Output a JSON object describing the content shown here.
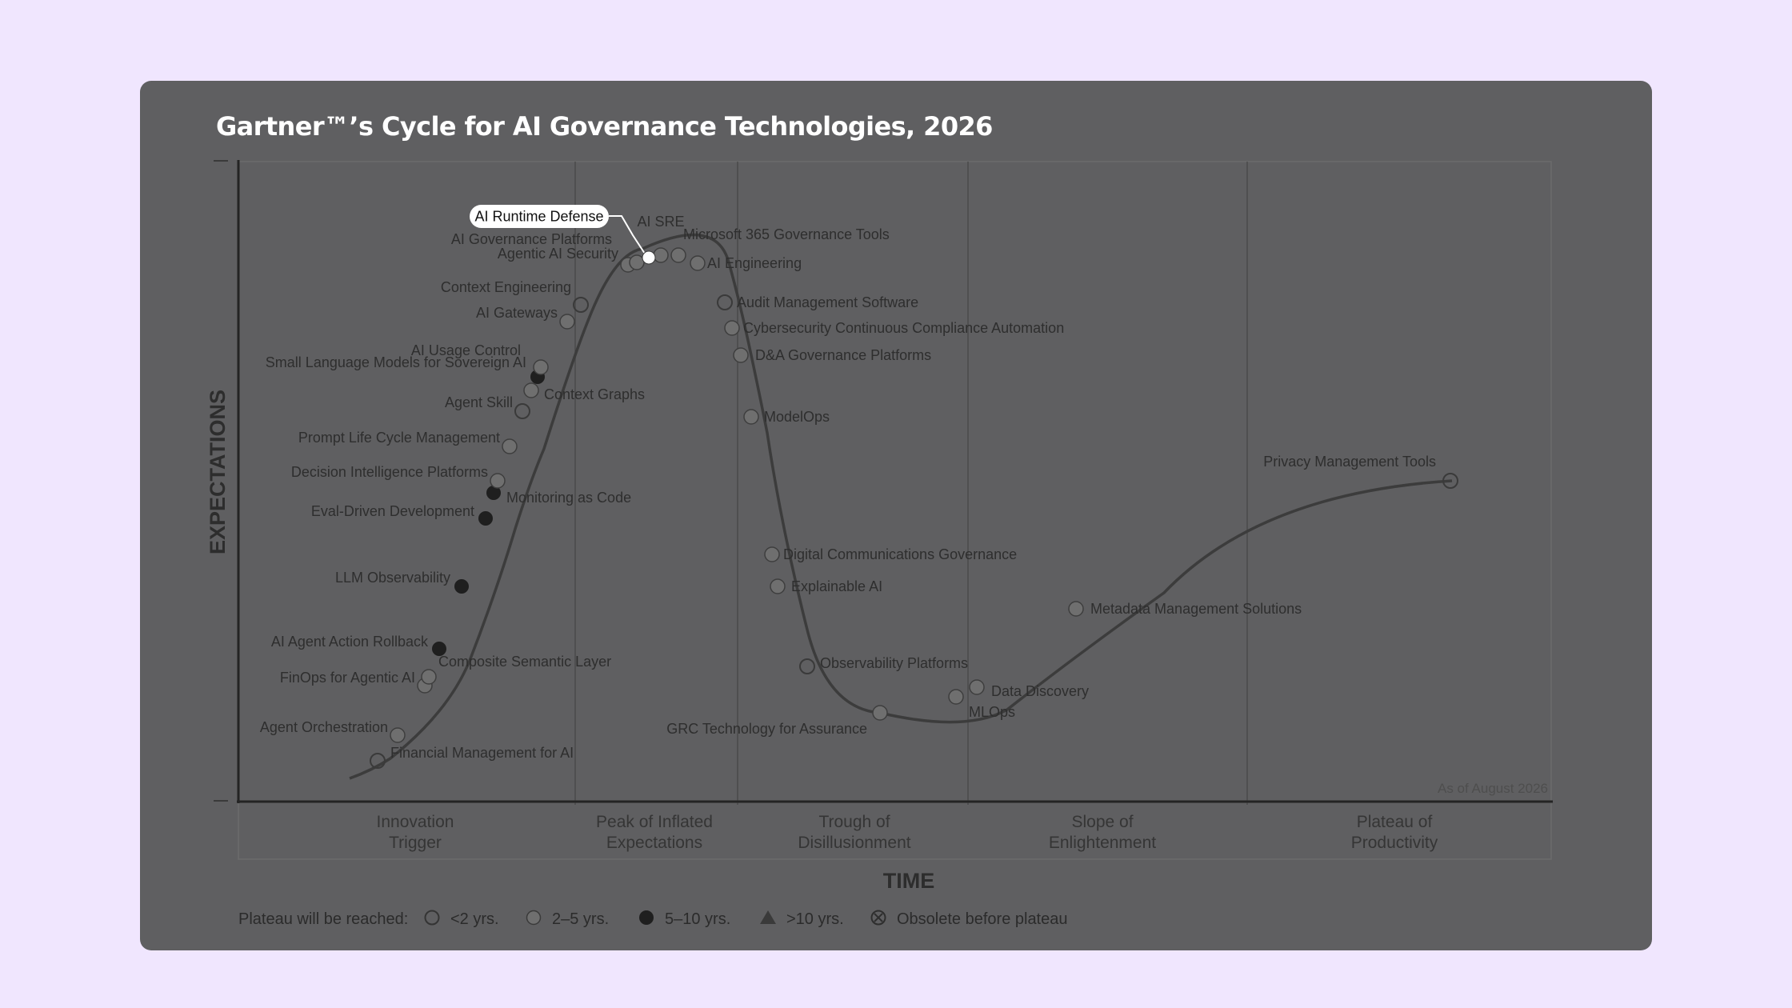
{
  "title": "Gartner™’s Cycle for AI Governance Technologies, 2026",
  "chart_data": {
    "type": "scatter",
    "y_axis_label": "EXPECTATIONS",
    "x_axis_label": "TIME",
    "as_of": "As of August 2026",
    "phases": [
      {
        "line1": "Innovation",
        "line2": "Trigger"
      },
      {
        "line1": "Peak of Inflated",
        "line2": "Expectations"
      },
      {
        "line1": "Trough of",
        "line2": "Disillusionment"
      },
      {
        "line1": "Slope of",
        "line2": "Enlightenment"
      },
      {
        "line1": "Plateau of",
        "line2": "Productivity"
      }
    ],
    "legend": {
      "prefix": "Plateau will be reached:",
      "items": [
        {
          "symbol": "open",
          "label": "<2 yrs."
        },
        {
          "symbol": "gray",
          "label": "2–5 yrs."
        },
        {
          "symbol": "dark",
          "label": "5–10 yrs."
        },
        {
          "symbol": "triangle",
          "label": ">10 yrs."
        },
        {
          "symbol": "obsolete",
          "label": "Obsolete before plateau"
        }
      ]
    },
    "highlight": "AI Runtime Defense",
    "technologies": [
      {
        "name": "Financial Management for AI",
        "plateau": "<2 yrs."
      },
      {
        "name": "Agent Orchestration",
        "plateau": "2–5 yrs."
      },
      {
        "name": "FinOps for Agentic AI",
        "plateau": "2–5 yrs."
      },
      {
        "name": "Composite Semantic Layer",
        "plateau": "2–5 yrs."
      },
      {
        "name": "AI Agent Action Rollback",
        "plateau": "5–10 yrs."
      },
      {
        "name": "LLM Observability",
        "plateau": "5–10 yrs."
      },
      {
        "name": "Eval-Driven Development",
        "plateau": "5–10 yrs."
      },
      {
        "name": "Monitoring as Code",
        "plateau": "5–10 yrs."
      },
      {
        "name": "Decision Intelligence Platforms",
        "plateau": "2–5 yrs."
      },
      {
        "name": "Prompt Life Cycle Management",
        "plateau": "2–5 yrs."
      },
      {
        "name": "Agent Skill",
        "plateau": "<2 yrs."
      },
      {
        "name": "Context Graphs",
        "plateau": "2–5 yrs."
      },
      {
        "name": "Small Language Models for Sovereign AI",
        "plateau": "5–10 yrs."
      },
      {
        "name": "AI Usage Control",
        "plateau": "2–5 yrs."
      },
      {
        "name": "AI Gateways",
        "plateau": "2–5 yrs."
      },
      {
        "name": "Context Engineering",
        "plateau": "<2 yrs."
      },
      {
        "name": "Agentic AI Security",
        "plateau": "2–5 yrs."
      },
      {
        "name": "AI Governance Platforms",
        "plateau": "2–5 yrs."
      },
      {
        "name": "AI Runtime Defense",
        "plateau": "<2 yrs."
      },
      {
        "name": "AI SRE",
        "plateau": "2–5 yrs."
      },
      {
        "name": "Microsoft 365 Governance Tools",
        "plateau": "2–5 yrs."
      },
      {
        "name": "AI Engineering",
        "plateau": "2–5 yrs."
      },
      {
        "name": "Audit Management Software",
        "plateau": "<2 yrs."
      },
      {
        "name": "Cybersecurity Continuous Compliance Automation",
        "plateau": "2–5 yrs."
      },
      {
        "name": "D&A Governance Platforms",
        "plateau": "2–5 yrs."
      },
      {
        "name": "ModelOps",
        "plateau": "2–5 yrs."
      },
      {
        "name": "Digital Communications Governance",
        "plateau": "2–5 yrs."
      },
      {
        "name": "Explainable AI",
        "plateau": "2–5 yrs."
      },
      {
        "name": "Observability Platforms",
        "plateau": "<2 yrs."
      },
      {
        "name": "GRC Technology for Assurance",
        "plateau": "2–5 yrs."
      },
      {
        "name": "MLOps",
        "plateau": "2–5 yrs."
      },
      {
        "name": "Data Discovery",
        "plateau": "2–5 yrs."
      },
      {
        "name": "Metadata Management Solutions",
        "plateau": "2–5 yrs."
      },
      {
        "name": "Privacy Management Tools",
        "plateau": "<2 yrs."
      }
    ]
  },
  "colors": {
    "page_bg": "#f0e6fe",
    "card_bg": "#5f5f61",
    "curve": "#3c3c3c",
    "marker_gray": "#6f6f6f",
    "marker_dark": "#1f1f1f",
    "highlight_bg": "#ffffff"
  }
}
